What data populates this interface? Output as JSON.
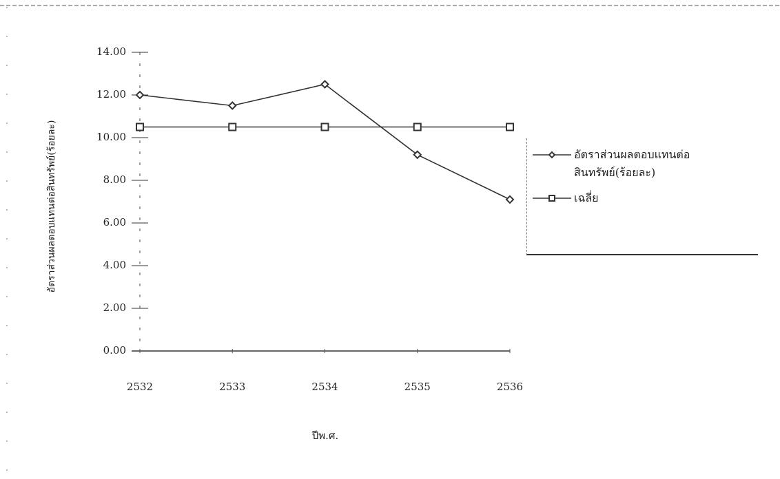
{
  "chart_data": {
    "type": "line",
    "y_label": "อัตราส่วนผลตอบแทนต่อสินทรัพย์(ร้อยละ)",
    "x_label": "ปีพ.ศ.",
    "categories": [
      "2532",
      "2533",
      "2534",
      "2535",
      "2536"
    ],
    "series": [
      {
        "name": "อัตราส่วนผลตอบแทนต่อสินทรัพย์(ร้อยละ)",
        "color": "#333333",
        "marker": "diamond",
        "values": [
          12.0,
          11.5,
          12.5,
          9.2,
          7.1
        ]
      },
      {
        "name": "เฉลี่ย",
        "color": "#333333",
        "marker": "square",
        "values": [
          10.5,
          10.5,
          10.5,
          10.5,
          10.5
        ]
      }
    ],
    "ylim": [
      0,
      14
    ],
    "yticks": [
      {
        "value": 0,
        "label": "0.00"
      },
      {
        "value": 2,
        "label": "2.00"
      },
      {
        "value": 4,
        "label": "4.00"
      },
      {
        "value": 6,
        "label": "6.00"
      },
      {
        "value": 8,
        "label": "8.00"
      },
      {
        "value": 10,
        "label": "10.00"
      },
      {
        "value": 12,
        "label": "12.00"
      },
      {
        "value": 14,
        "label": "14.00"
      }
    ],
    "legend": "right"
  }
}
